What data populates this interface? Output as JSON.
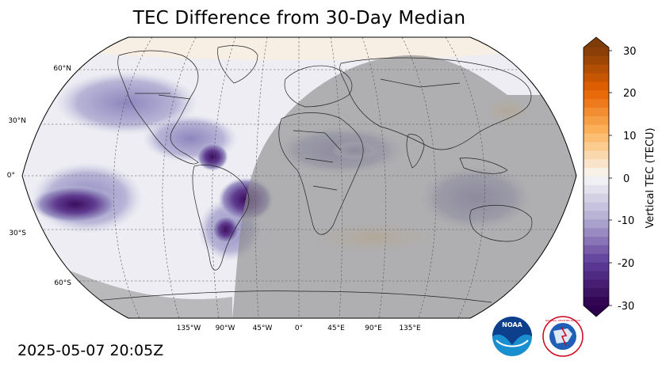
{
  "title": "TEC Difference from 30-Day Median",
  "timestamp": "2025-05-07 20:05Z",
  "map": {
    "projection": "Robinson",
    "gridlines": "dashed",
    "lat_labels": [
      "60°N",
      "30°N",
      "0°",
      "30°S",
      "60°S"
    ],
    "lon_labels": [
      "135°W",
      "90°W",
      "45°W",
      "0°",
      "45°E",
      "90°E",
      "135°E"
    ],
    "night_shading": "gray overlay over the night hemisphere",
    "colors": {
      "map_bg": "#ededf3",
      "night": "#8e8e8e",
      "coast": "#222222",
      "grid": "#555555"
    }
  },
  "colorbar": {
    "label": "Vertical TEC (TECU)",
    "ticks": [
      "30",
      "20",
      "10",
      "0",
      "-10",
      "-20",
      "-30"
    ],
    "range": [
      -30,
      30
    ],
    "colormap": "PuOr (purple negative, orange positive)"
  },
  "logos": {
    "noaa": "NOAA",
    "nws": "NATIONAL WEATHER SERVICE"
  }
}
